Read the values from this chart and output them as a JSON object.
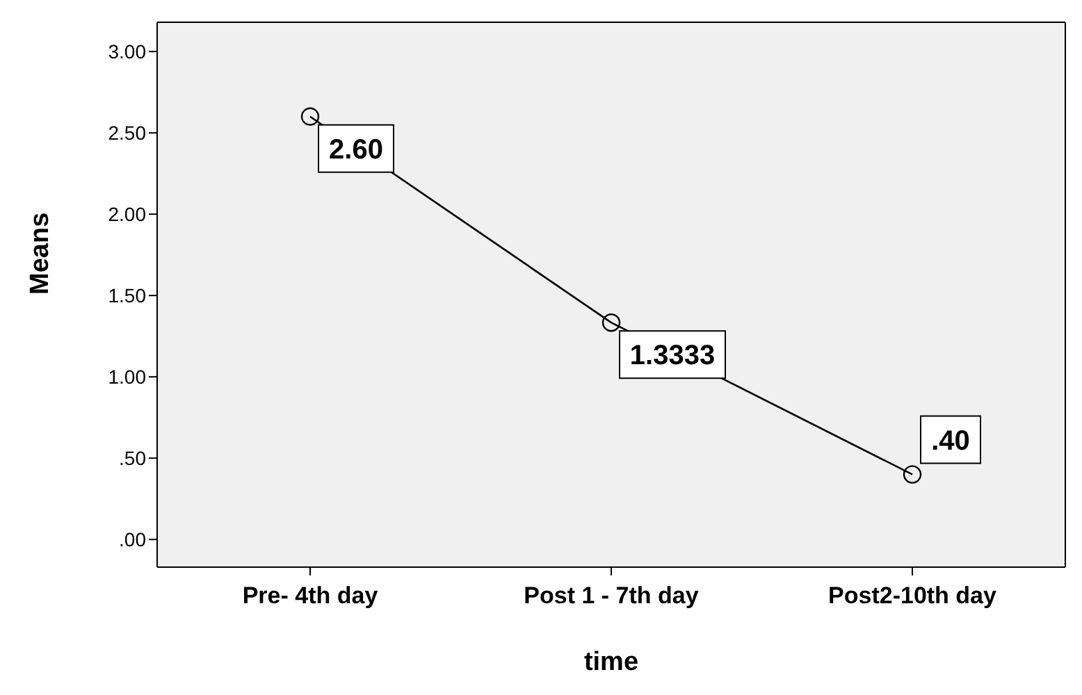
{
  "chart_data": {
    "type": "line",
    "xlabel": "time",
    "ylabel": "Means",
    "categories": [
      "Pre- 4th day",
      "Post 1 - 7th day",
      "Post2-10th day"
    ],
    "series": [
      {
        "color": "#000000",
        "values": [
          2.6,
          1.3333,
          0.4
        ],
        "value_labels": [
          "2.60",
          "1.3333",
          ".40"
        ]
      }
    ],
    "ylim": [
      -0.17,
      3.18
    ],
    "yticks": [
      {
        "value": 0,
        "label": ".00"
      },
      {
        "value": 0.5,
        "label": ".50"
      },
      {
        "value": 1,
        "label": "1.00"
      },
      {
        "value": 1.5,
        "label": "1.50"
      },
      {
        "value": 2,
        "label": "2.00"
      },
      {
        "value": 2.5,
        "label": "2.50"
      },
      {
        "value": 3,
        "label": "3.00"
      }
    ],
    "marker": "circle",
    "line_style": "solid",
    "grid": false,
    "legend": false
  }
}
